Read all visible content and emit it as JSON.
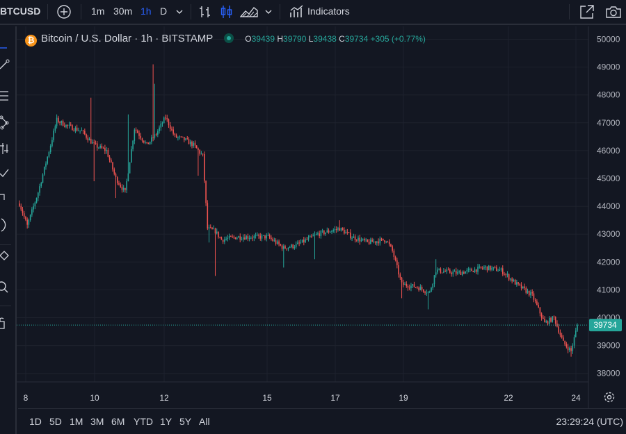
{
  "toolbar": {
    "symbol": "BTCUSD",
    "intervals": [
      "1m",
      "30m",
      "1h",
      "D"
    ],
    "active_interval": "1h",
    "indicators_label": "Indicators"
  },
  "legend": {
    "title": "Bitcoin / U.S. Dollar · 1h · BITSTAMP",
    "coin_glyph": "₿",
    "o_label": "O",
    "o_value": "39439",
    "h_label": "H",
    "h_value": "39790",
    "l_label": "L",
    "l_value": "39438",
    "c_label": "C",
    "c_value": "39734",
    "change": "+305 (+0.77%)"
  },
  "ranges": [
    "1D",
    "5D",
    "1M",
    "3M",
    "6M",
    "YTD",
    "1Y",
    "5Y",
    "All"
  ],
  "clock": "23:29:24 (UTC)",
  "colors": {
    "up": "#26a69a",
    "down": "#ef5350",
    "background": "#131722",
    "grid": "#1e222d",
    "price_label": "#26a69a"
  },
  "chart_data": {
    "type": "candlestick",
    "instrument": "Bitcoin / U.S. Dollar",
    "interval": "1h",
    "exchange": "BITSTAMP",
    "x_tick_labels": [
      "8",
      "10",
      "12",
      "15",
      "17",
      "19",
      "22",
      "24"
    ],
    "y_tick_labels": [
      "38000",
      "39000",
      "40000",
      "41000",
      "42000",
      "43000",
      "44000",
      "45000",
      "46000",
      "47000",
      "48000",
      "49000",
      "50000"
    ],
    "ylim": [
      37500,
      50300
    ],
    "last_price": 39734,
    "last_price_label": "39734",
    "grid": true,
    "close_path": [
      {
        "t": 0,
        "v": 44100
      },
      {
        "t": 5,
        "v": 43300
      },
      {
        "t": 12,
        "v": 44500
      },
      {
        "t": 20,
        "v": 46200
      },
      {
        "t": 24,
        "v": 47100
      },
      {
        "t": 30,
        "v": 46900
      },
      {
        "t": 40,
        "v": 46700
      },
      {
        "t": 48,
        "v": 46200
      },
      {
        "t": 56,
        "v": 46000
      },
      {
        "t": 62,
        "v": 45000
      },
      {
        "t": 68,
        "v": 44500
      },
      {
        "t": 74,
        "v": 46800
      },
      {
        "t": 82,
        "v": 46200
      },
      {
        "t": 88,
        "v": 46600
      },
      {
        "t": 94,
        "v": 47200
      },
      {
        "t": 100,
        "v": 46500
      },
      {
        "t": 106,
        "v": 46400
      },
      {
        "t": 112,
        "v": 46200
      },
      {
        "t": 118,
        "v": 45800
      },
      {
        "t": 121,
        "v": 43200
      },
      {
        "t": 126,
        "v": 43100
      },
      {
        "t": 130,
        "v": 42800
      },
      {
        "t": 140,
        "v": 42900
      },
      {
        "t": 160,
        "v": 42900
      },
      {
        "t": 170,
        "v": 42500
      },
      {
        "t": 178,
        "v": 42600
      },
      {
        "t": 192,
        "v": 43000
      },
      {
        "t": 206,
        "v": 43200
      },
      {
        "t": 214,
        "v": 42900
      },
      {
        "t": 224,
        "v": 42700
      },
      {
        "t": 236,
        "v": 42800
      },
      {
        "t": 240,
        "v": 42400
      },
      {
        "t": 246,
        "v": 41200
      },
      {
        "t": 256,
        "v": 41100
      },
      {
        "t": 264,
        "v": 40900
      },
      {
        "t": 268,
        "v": 41700
      },
      {
        "t": 282,
        "v": 41600
      },
      {
        "t": 300,
        "v": 41800
      },
      {
        "t": 310,
        "v": 41700
      },
      {
        "t": 320,
        "v": 41200
      },
      {
        "t": 330,
        "v": 40800
      },
      {
        "t": 338,
        "v": 39800
      },
      {
        "t": 344,
        "v": 40000
      },
      {
        "t": 350,
        "v": 39100
      },
      {
        "t": 355,
        "v": 38800
      },
      {
        "t": 359,
        "v": 39734
      }
    ],
    "spikes": [
      {
        "t": 5,
        "low": 43200
      },
      {
        "t": 24,
        "high": 47300
      },
      {
        "t": 46,
        "high": 47900
      },
      {
        "t": 48,
        "low": 44900
      },
      {
        "t": 62,
        "low": 44300
      },
      {
        "t": 70,
        "high": 47300
      },
      {
        "t": 86,
        "high": 49100
      },
      {
        "t": 87,
        "high": 48400
      },
      {
        "t": 115,
        "low": 45100
      },
      {
        "t": 122,
        "low": 42700
      },
      {
        "t": 126,
        "low": 41500
      },
      {
        "t": 170,
        "low": 41800
      },
      {
        "t": 190,
        "low": 42100
      },
      {
        "t": 206,
        "high": 43500
      },
      {
        "t": 246,
        "low": 40700
      },
      {
        "t": 263,
        "low": 40300
      },
      {
        "t": 268,
        "high": 42100
      },
      {
        "t": 355,
        "low": 38600
      }
    ]
  }
}
